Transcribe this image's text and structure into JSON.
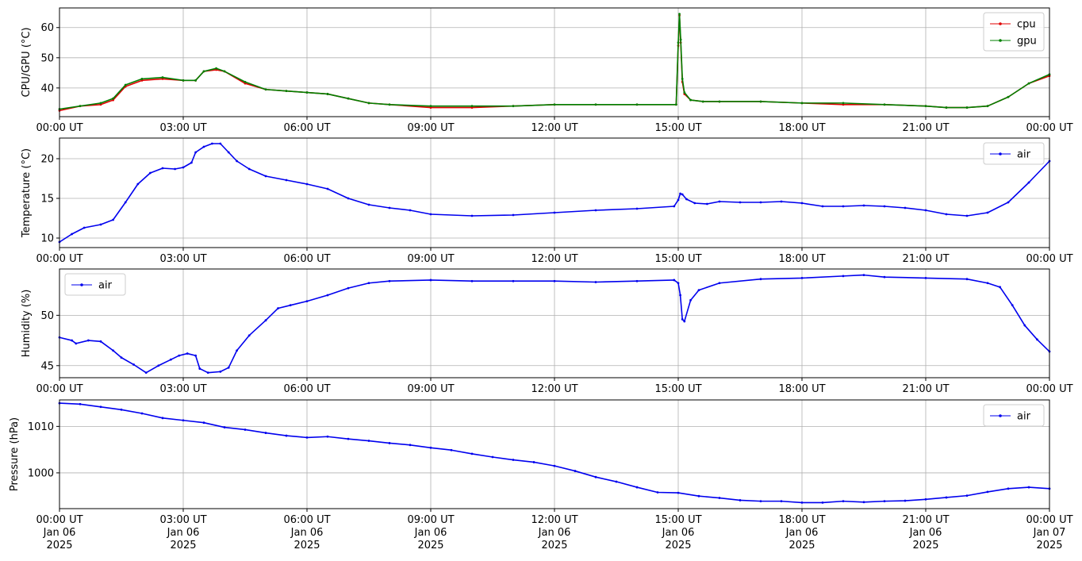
{
  "colors": {
    "cpu": "#e00000",
    "gpu": "#008000",
    "air": "#0000ee"
  },
  "chart_data": [
    {
      "type": "line",
      "ylabel": "CPU/GPU (°C)",
      "ylim": [
        30.5,
        66.5
      ],
      "yticks": [
        40,
        50,
        60
      ],
      "xlim": [
        0,
        24
      ],
      "xticks": [
        0,
        3,
        6,
        9,
        12,
        15,
        18,
        21,
        24
      ],
      "xtick_labels": [
        "00:00 UT",
        "03:00 UT",
        "06:00 UT",
        "09:00 UT",
        "12:00 UT",
        "15:00 UT",
        "18:00 UT",
        "21:00 UT",
        "00:00 UT"
      ],
      "grid": true,
      "legend": "top-right",
      "series": [
        {
          "name": "cpu",
          "color": "#e00000",
          "x": [
            0,
            0.5,
            1.0,
            1.3,
            1.6,
            2.0,
            2.5,
            3.0,
            3.3,
            3.5,
            3.8,
            4.0,
            4.5,
            5.0,
            5.5,
            6.0,
            6.5,
            7.0,
            7.5,
            8.0,
            9.0,
            10.0,
            11.0,
            12.0,
            13.0,
            14.0,
            14.95,
            15.0,
            15.03,
            15.06,
            15.1,
            15.15,
            15.3,
            15.6,
            16.0,
            17.0,
            18.0,
            19.0,
            20.0,
            21.0,
            21.5,
            22.0,
            22.5,
            23.0,
            23.5,
            24.0
          ],
          "y": [
            32.5,
            34.0,
            34.5,
            36.0,
            40.5,
            42.5,
            43.0,
            42.5,
            42.5,
            45.5,
            46.0,
            45.5,
            41.5,
            39.5,
            39.0,
            38.5,
            38.0,
            36.5,
            35.0,
            34.5,
            33.5,
            33.5,
            34.0,
            34.5,
            34.5,
            34.5,
            34.5,
            54.0,
            64.0,
            55.0,
            42.0,
            38.0,
            36.0,
            35.5,
            35.5,
            35.5,
            35.0,
            34.5,
            34.5,
            34.0,
            33.5,
            33.5,
            34.0,
            37.0,
            41.5,
            44.0
          ]
        },
        {
          "name": "gpu",
          "color": "#008000",
          "x": [
            0,
            0.5,
            1.0,
            1.3,
            1.6,
            2.0,
            2.5,
            3.0,
            3.3,
            3.5,
            3.8,
            4.0,
            4.5,
            5.0,
            5.5,
            6.0,
            6.5,
            7.0,
            7.5,
            8.0,
            9.0,
            10.0,
            11.0,
            12.0,
            13.0,
            14.0,
            14.95,
            15.0,
            15.03,
            15.06,
            15.1,
            15.15,
            15.3,
            15.6,
            16.0,
            17.0,
            18.0,
            19.0,
            20.0,
            21.0,
            21.5,
            22.0,
            22.5,
            23.0,
            23.5,
            24.0
          ],
          "y": [
            33.0,
            34.0,
            35.0,
            36.5,
            41.0,
            43.0,
            43.5,
            42.5,
            42.5,
            45.5,
            46.5,
            45.5,
            42.0,
            39.5,
            39.0,
            38.5,
            38.0,
            36.5,
            35.0,
            34.5,
            34.0,
            34.0,
            34.0,
            34.5,
            34.5,
            34.5,
            34.5,
            55.0,
            64.5,
            56.0,
            43.0,
            38.5,
            36.0,
            35.5,
            35.5,
            35.5,
            35.0,
            35.0,
            34.5,
            34.0,
            33.5,
            33.5,
            34.0,
            37.0,
            41.5,
            44.5
          ]
        }
      ]
    },
    {
      "type": "line",
      "ylabel": "Temperature (°C)",
      "ylim": [
        8.8,
        22.6
      ],
      "yticks": [
        10,
        15,
        20
      ],
      "xlim": [
        0,
        24
      ],
      "xticks": [
        0,
        3,
        6,
        9,
        12,
        15,
        18,
        21,
        24
      ],
      "xtick_labels": [
        "00:00 UT",
        "03:00 UT",
        "06:00 UT",
        "09:00 UT",
        "12:00 UT",
        "15:00 UT",
        "18:00 UT",
        "21:00 UT",
        "00:00 UT"
      ],
      "grid": true,
      "legend": "top-right",
      "series": [
        {
          "name": "air",
          "color": "#0000ee",
          "x": [
            0,
            0.3,
            0.6,
            1.0,
            1.3,
            1.6,
            1.9,
            2.2,
            2.5,
            2.8,
            3.0,
            3.2,
            3.3,
            3.5,
            3.7,
            3.9,
            4.1,
            4.3,
            4.6,
            5.0,
            5.5,
            6.0,
            6.5,
            7.0,
            7.5,
            8.0,
            8.5,
            9.0,
            10.0,
            11.0,
            12.0,
            13.0,
            14.0,
            14.9,
            15.0,
            15.05,
            15.1,
            15.2,
            15.4,
            15.7,
            16.0,
            16.5,
            17.0,
            17.5,
            18.0,
            18.5,
            19.0,
            19.5,
            20.0,
            20.5,
            21.0,
            21.5,
            22.0,
            22.5,
            23.0,
            23.5,
            24.0
          ],
          "y": [
            9.5,
            10.5,
            11.3,
            11.7,
            12.3,
            14.5,
            16.8,
            18.2,
            18.8,
            18.7,
            18.9,
            19.5,
            20.8,
            21.5,
            21.9,
            21.9,
            20.8,
            19.7,
            18.7,
            17.8,
            17.3,
            16.8,
            16.2,
            15.0,
            14.2,
            13.8,
            13.5,
            13.0,
            12.8,
            12.9,
            13.2,
            13.5,
            13.7,
            14.0,
            14.8,
            15.6,
            15.5,
            14.9,
            14.4,
            14.3,
            14.6,
            14.5,
            14.5,
            14.6,
            14.4,
            14.0,
            14.0,
            14.1,
            14.0,
            13.8,
            13.5,
            13.0,
            12.8,
            13.2,
            14.5,
            17.0,
            19.7
          ]
        }
      ]
    },
    {
      "type": "line",
      "ylabel": "Humidity (%)",
      "ylim": [
        43.8,
        54.6
      ],
      "yticks": [
        45,
        50
      ],
      "xlim": [
        0,
        24
      ],
      "xticks": [
        0,
        3,
        6,
        9,
        12,
        15,
        18,
        21,
        24
      ],
      "xtick_labels": [
        "00:00 UT",
        "03:00 UT",
        "06:00 UT",
        "09:00 UT",
        "12:00 UT",
        "15:00 UT",
        "18:00 UT",
        "21:00 UT",
        "00:00 UT"
      ],
      "grid": true,
      "legend": "top-left",
      "series": [
        {
          "name": "air",
          "color": "#0000ee",
          "x": [
            0,
            0.3,
            0.4,
            0.7,
            1.0,
            1.3,
            1.5,
            1.8,
            2.1,
            2.4,
            2.7,
            2.9,
            3.1,
            3.3,
            3.4,
            3.6,
            3.9,
            4.1,
            4.3,
            4.6,
            5.0,
            5.3,
            5.6,
            6.0,
            6.5,
            7.0,
            7.5,
            8.0,
            9.0,
            10.0,
            11.0,
            12.0,
            13.0,
            14.0,
            14.9,
            15.0,
            15.05,
            15.1,
            15.15,
            15.3,
            15.5,
            16.0,
            17.0,
            18.0,
            19.0,
            19.5,
            20.0,
            21.0,
            22.0,
            22.5,
            22.8,
            23.1,
            23.4,
            23.7,
            24.0
          ],
          "y": [
            47.8,
            47.5,
            47.2,
            47.5,
            47.4,
            46.5,
            45.8,
            45.1,
            44.3,
            45.0,
            45.6,
            46.0,
            46.2,
            46.0,
            44.7,
            44.3,
            44.4,
            44.8,
            46.5,
            48.0,
            49.5,
            50.7,
            51.0,
            51.4,
            52.0,
            52.7,
            53.2,
            53.4,
            53.5,
            53.4,
            53.4,
            53.4,
            53.3,
            53.4,
            53.5,
            53.2,
            52.0,
            49.6,
            49.4,
            51.5,
            52.5,
            53.2,
            53.6,
            53.7,
            53.9,
            54.0,
            53.8,
            53.7,
            53.6,
            53.2,
            52.8,
            51.0,
            49.0,
            47.6,
            46.4
          ]
        }
      ]
    },
    {
      "type": "line",
      "ylabel": "Pressure (hPa)",
      "ylim": [
        992.3,
        1015.7
      ],
      "yticks": [
        1000,
        1010
      ],
      "xlim": [
        0,
        24
      ],
      "xticks": [
        0,
        3,
        6,
        9,
        12,
        15,
        18,
        21,
        24
      ],
      "xtick_labels": [
        "00:00 UT",
        "03:00 UT",
        "06:00 UT",
        "09:00 UT",
        "12:00 UT",
        "15:00 UT",
        "18:00 UT",
        "21:00 UT",
        "00:00 UT"
      ],
      "xtick_dates": [
        "Jan 06",
        "Jan 06",
        "Jan 06",
        "Jan 06",
        "Jan 06",
        "Jan 06",
        "Jan 06",
        "Jan 06",
        "Jan 07"
      ],
      "xtick_years": [
        "2025",
        "2025",
        "2025",
        "2025",
        "2025",
        "2025",
        "2025",
        "2025",
        "2025"
      ],
      "grid": true,
      "legend": "top-right",
      "series": [
        {
          "name": "air",
          "color": "#0000ee",
          "x": [
            0,
            0.5,
            1.0,
            1.5,
            2.0,
            2.5,
            3.0,
            3.5,
            4.0,
            4.5,
            5.0,
            5.5,
            6.0,
            6.5,
            7.0,
            7.5,
            8.0,
            8.5,
            9.0,
            9.5,
            10.0,
            10.5,
            11.0,
            11.5,
            12.0,
            12.5,
            13.0,
            13.5,
            14.0,
            14.5,
            15.0,
            15.5,
            16.0,
            16.5,
            17.0,
            17.5,
            18.0,
            18.5,
            19.0,
            19.5,
            20.0,
            20.5,
            21.0,
            21.5,
            22.0,
            22.5,
            23.0,
            23.5,
            24.0
          ],
          "y": [
            1015.0,
            1014.8,
            1014.2,
            1013.6,
            1012.8,
            1011.8,
            1011.3,
            1010.8,
            1009.8,
            1009.3,
            1008.6,
            1008.0,
            1007.6,
            1007.8,
            1007.3,
            1006.9,
            1006.4,
            1006.0,
            1005.4,
            1004.9,
            1004.1,
            1003.4,
            1002.8,
            1002.3,
            1001.5,
            1000.4,
            999.1,
            998.1,
            996.9,
            995.8,
            995.7,
            995.0,
            994.6,
            994.1,
            993.9,
            993.9,
            993.6,
            993.6,
            993.9,
            993.7,
            993.9,
            994.0,
            994.3,
            994.7,
            995.1,
            995.9,
            996.6,
            996.9,
            996.6
          ]
        }
      ]
    }
  ]
}
